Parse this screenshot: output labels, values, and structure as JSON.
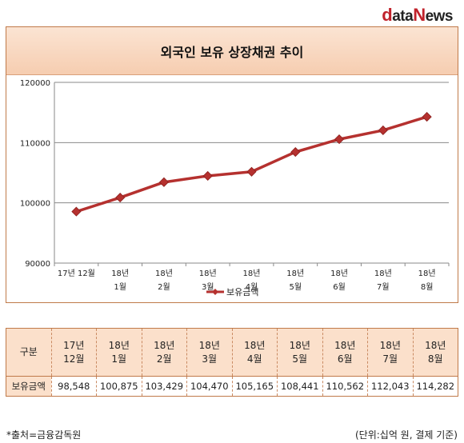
{
  "brand": {
    "logo_d": "d",
    "logo_ata": "ata",
    "logo_n": "N",
    "logo_ews": "ews"
  },
  "chart_data": {
    "type": "line",
    "title": "외국인 보유 상장채권 추이",
    "categories": [
      "17년 12월",
      "18년\n1월",
      "18년\n2월",
      "18년\n3월",
      "18년\n4월",
      "18년\n5월",
      "18년\n6월",
      "18년\n7월",
      "18년\n8월"
    ],
    "series": [
      {
        "name": "보유금액",
        "values": [
          98548,
          100875,
          103429,
          104470,
          105165,
          108441,
          110562,
          112043,
          114282
        ]
      }
    ],
    "ylim": [
      90000,
      120000
    ],
    "yticks": [
      90000,
      100000,
      110000,
      120000
    ],
    "grid": true,
    "legend": "bottom",
    "color": "#b5312f"
  },
  "table": {
    "header_label": "구분",
    "row_label": "보유금액",
    "columns": [
      "17년\n12월",
      "18년\n1월",
      "18년\n2월",
      "18년\n3월",
      "18년\n4월",
      "18년\n5월",
      "18년\n6월",
      "18년\n7월",
      "18년\n8월"
    ],
    "values": [
      "98,548",
      "100,875",
      "103,429",
      "104,470",
      "105,165",
      "108,441",
      "110,562",
      "112,043",
      "114,282"
    ]
  },
  "footer": {
    "source": "*출처=금융감독원",
    "unit": "(단위:십억 원, 결제 기준)"
  }
}
